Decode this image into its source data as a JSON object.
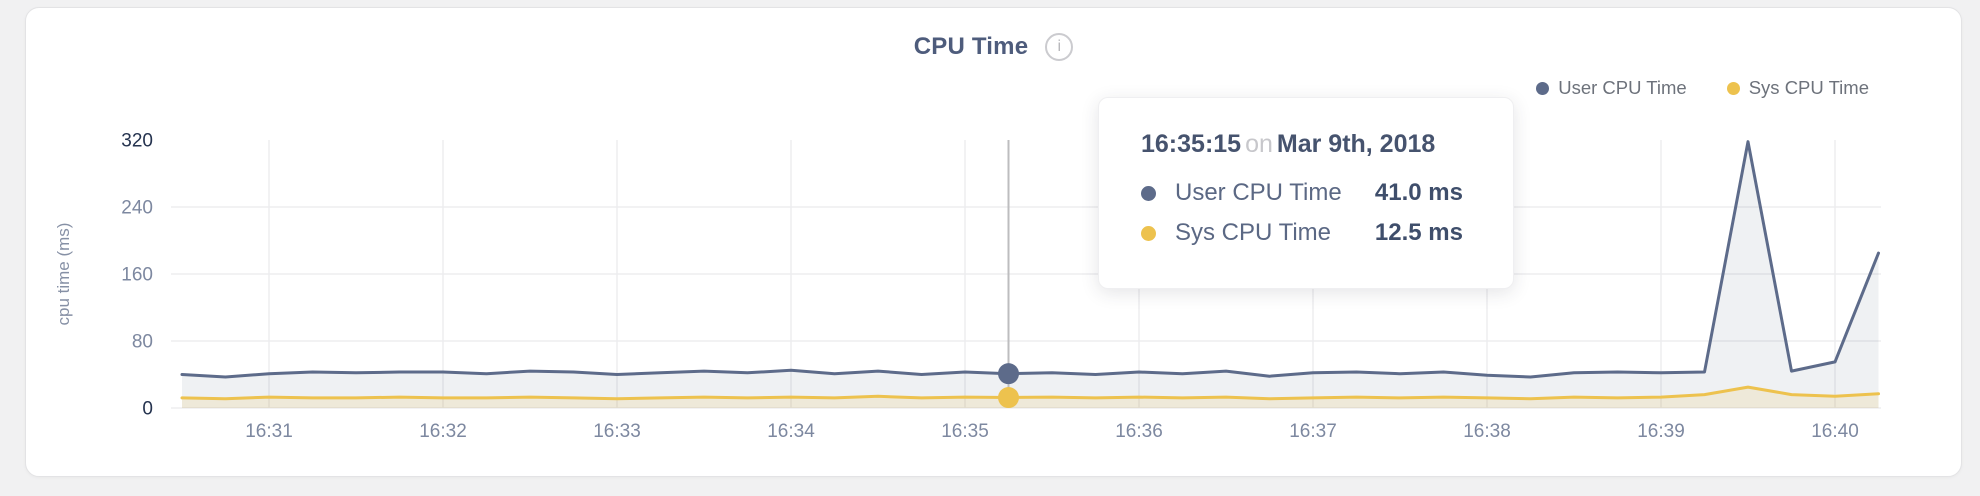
{
  "header": {
    "title": "CPU Time",
    "info_glyph": "i"
  },
  "legend": {
    "items": [
      {
        "label": "User CPU Time",
        "color": "#5d6b8a"
      },
      {
        "label": "Sys CPU Time",
        "color": "#edc24e"
      }
    ]
  },
  "tooltip": {
    "time": "16:35:15",
    "connector": "on",
    "date": "Mar 9th, 2018",
    "rows": [
      {
        "label": "User CPU Time",
        "value": "41.0 ms",
        "color": "#5d6b8a"
      },
      {
        "label": "Sys CPU Time",
        "value": "12.5 ms",
        "color": "#edc24e"
      }
    ]
  },
  "chart_data": {
    "type": "line",
    "title": "CPU Time",
    "xlabel": "",
    "ylabel": "cpu time (ms)",
    "ylim": [
      0,
      320
    ],
    "y_ticks": [
      0,
      80,
      160,
      240,
      320
    ],
    "x_ticks": [
      "16:31",
      "16:32",
      "16:33",
      "16:34",
      "16:35",
      "16:36",
      "16:37",
      "16:38",
      "16:39",
      "16:40"
    ],
    "x_start": "16:30:30",
    "interval_seconds": 15,
    "grid": "on",
    "legend_position": "top-right",
    "hover_index": 19,
    "series": [
      {
        "name": "User CPU Time",
        "color": "#5d6b8a",
        "fill": "rgba(100,113,142,0.10)",
        "values": [
          40,
          37,
          41,
          43,
          42,
          43,
          43,
          41,
          44,
          43,
          40,
          42,
          44,
          42,
          45,
          41,
          44,
          40,
          43,
          41,
          42,
          40,
          43,
          41,
          44,
          38,
          42,
          43,
          41,
          43,
          39,
          37,
          42,
          43,
          42,
          43,
          318,
          44,
          55,
          185
        ]
      },
      {
        "name": "Sys CPU Time",
        "color": "#edc24e",
        "fill": "rgba(237,194,78,0.16)",
        "values": [
          12,
          11,
          13,
          12,
          12,
          13,
          12,
          12,
          13,
          12,
          11,
          12,
          13,
          12,
          13,
          12,
          14,
          12,
          13,
          12.5,
          13,
          12,
          13,
          12,
          13,
          11,
          12,
          13,
          12,
          13,
          12,
          11,
          13,
          12,
          13,
          16,
          25,
          16,
          14,
          17
        ]
      }
    ],
    "colors": {
      "grid": "#ededef",
      "crosshair": "#bdbdbf",
      "tick_label": "#7d88a0",
      "tick_label_strong": "#25334f"
    }
  }
}
